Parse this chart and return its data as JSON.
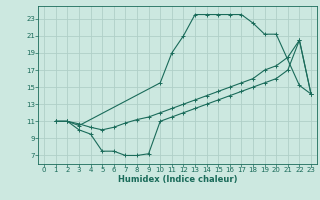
{
  "xlabel": "Humidex (Indice chaleur)",
  "bg_color": "#cce8e0",
  "grid_color": "#b0cfc8",
  "line_color": "#1a6b5a",
  "xlim": [
    -0.5,
    23.5
  ],
  "ylim": [
    6,
    24.5
  ],
  "xticks": [
    0,
    1,
    2,
    3,
    4,
    5,
    6,
    7,
    8,
    9,
    10,
    11,
    12,
    13,
    14,
    15,
    16,
    17,
    18,
    19,
    20,
    21,
    22,
    23
  ],
  "yticks": [
    7,
    9,
    11,
    13,
    15,
    17,
    19,
    21,
    23
  ],
  "line1_x": [
    1,
    2,
    3,
    10,
    11,
    12,
    13,
    14,
    15,
    16,
    17,
    18,
    19,
    20,
    22,
    23
  ],
  "line1_y": [
    11,
    11,
    10.5,
    15.5,
    19,
    21,
    23.5,
    23.5,
    23.5,
    23.5,
    23.5,
    22.5,
    21.2,
    21.2,
    15.2,
    14.2
  ],
  "line2_x": [
    1,
    2,
    3,
    4,
    5,
    6,
    7,
    8,
    9,
    10,
    11,
    12,
    13,
    14,
    15,
    16,
    17,
    18,
    19,
    20,
    21,
    22,
    23
  ],
  "line2_y": [
    11,
    11,
    10.7,
    10.3,
    10.0,
    10.3,
    10.8,
    11.2,
    11.5,
    12.0,
    12.5,
    13.0,
    13.5,
    14.0,
    14.5,
    15.0,
    15.5,
    16.0,
    17.0,
    17.5,
    18.5,
    20.5,
    14.2
  ],
  "line3_x": [
    1,
    2,
    3,
    4,
    5,
    6,
    7,
    8,
    9,
    10,
    11,
    12,
    13,
    14,
    15,
    16,
    17,
    18,
    19,
    20,
    21,
    22,
    23
  ],
  "line3_y": [
    11,
    11,
    10.0,
    9.5,
    7.5,
    7.5,
    7.0,
    7.0,
    7.2,
    11.0,
    11.5,
    12.0,
    12.5,
    13.0,
    13.5,
    14.0,
    14.5,
    15.0,
    15.5,
    16.0,
    17.0,
    20.5,
    14.2
  ]
}
